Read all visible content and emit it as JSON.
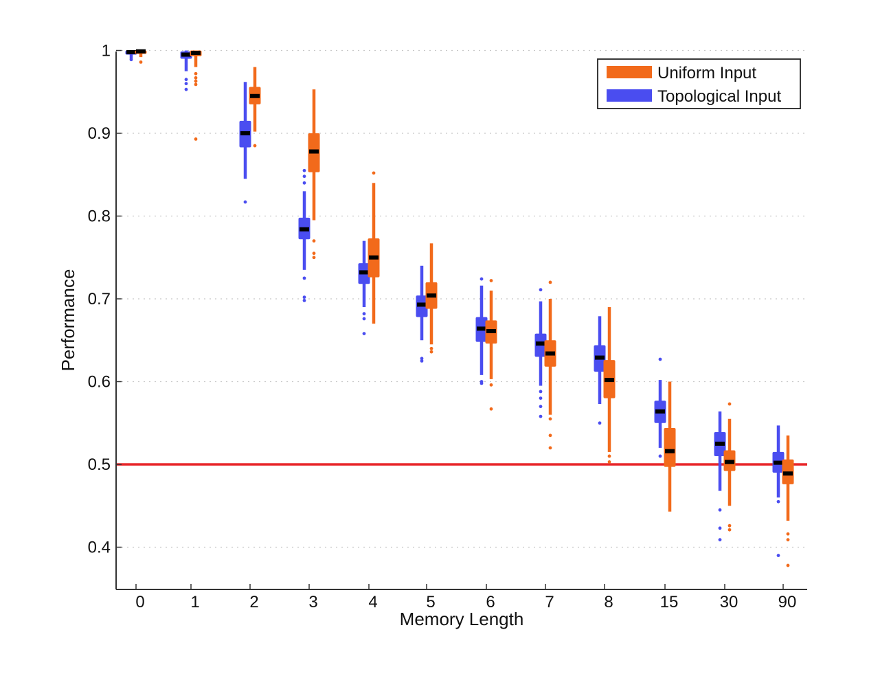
{
  "chart_data": {
    "type": "box",
    "xlabel": "Memory Length",
    "ylabel": "Performance",
    "categories": [
      "0",
      "1",
      "2",
      "3",
      "4",
      "5",
      "6",
      "7",
      "8",
      "15",
      "30",
      "90"
    ],
    "ylim": [
      0.35,
      1.0
    ],
    "yticks": [
      0.4,
      0.5,
      0.6,
      0.7,
      0.8,
      0.9,
      1
    ],
    "ytick_labels": [
      "0.4",
      "0.5",
      "0.6",
      "0.7",
      "0.8",
      "0.9",
      "1"
    ],
    "grid": "horizontal dotted",
    "legend_position": "top-right",
    "reference_line": {
      "y": 0.5,
      "color": "#e8262a"
    },
    "series": [
      {
        "name": "Topological Input",
        "color": "#4a4df0",
        "boxes": [
          {
            "median": 0.998,
            "q1": 0.995,
            "q3": 1.0,
            "whisker_low": 0.99,
            "whisker_high": 1.0,
            "outliers": [
              0.989
            ]
          },
          {
            "median": 0.995,
            "q1": 0.99,
            "q3": 0.999,
            "whisker_low": 0.975,
            "whisker_high": 1.0,
            "outliers": [
              0.965,
              0.96,
              0.953
            ]
          },
          {
            "median": 0.9,
            "q1": 0.883,
            "q3": 0.915,
            "whisker_low": 0.845,
            "whisker_high": 0.962,
            "outliers": [
              0.817
            ]
          },
          {
            "median": 0.784,
            "q1": 0.772,
            "q3": 0.798,
            "whisker_low": 0.735,
            "whisker_high": 0.83,
            "outliers": [
              0.855,
              0.848,
              0.84,
              0.725,
              0.702,
              0.698
            ]
          },
          {
            "median": 0.732,
            "q1": 0.718,
            "q3": 0.743,
            "whisker_low": 0.69,
            "whisker_high": 0.77,
            "outliers": [
              0.682,
              0.676,
              0.658
            ]
          },
          {
            "median": 0.693,
            "q1": 0.678,
            "q3": 0.704,
            "whisker_low": 0.65,
            "whisker_high": 0.74,
            "outliers": [
              0.628,
              0.625
            ]
          },
          {
            "median": 0.664,
            "q1": 0.648,
            "q3": 0.678,
            "whisker_low": 0.608,
            "whisker_high": 0.716,
            "outliers": [
              0.724,
              0.6,
              0.598
            ]
          },
          {
            "median": 0.646,
            "q1": 0.63,
            "q3": 0.658,
            "whisker_low": 0.595,
            "whisker_high": 0.697,
            "outliers": [
              0.711,
              0.588,
              0.58,
              0.57,
              0.558
            ]
          },
          {
            "median": 0.629,
            "q1": 0.612,
            "q3": 0.644,
            "whisker_low": 0.573,
            "whisker_high": 0.679,
            "outliers": [
              0.55
            ]
          },
          {
            "median": 0.564,
            "q1": 0.55,
            "q3": 0.577,
            "whisker_low": 0.52,
            "whisker_high": 0.602,
            "outliers": [
              0.627,
              0.51
            ]
          },
          {
            "median": 0.525,
            "q1": 0.51,
            "q3": 0.539,
            "whisker_low": 0.468,
            "whisker_high": 0.564,
            "outliers": [
              0.445,
              0.423,
              0.409
            ]
          },
          {
            "median": 0.502,
            "q1": 0.49,
            "q3": 0.515,
            "whisker_low": 0.46,
            "whisker_high": 0.547,
            "outliers": [
              0.455,
              0.39
            ]
          }
        ]
      },
      {
        "name": "Uniform Input",
        "color": "#f26a1b",
        "boxes": [
          {
            "median": 0.999,
            "q1": 0.996,
            "q3": 1.0,
            "whisker_low": 0.992,
            "whisker_high": 1.0,
            "outliers": [
              0.986
            ]
          },
          {
            "median": 0.997,
            "q1": 0.993,
            "q3": 1.0,
            "whisker_low": 0.98,
            "whisker_high": 1.0,
            "outliers": [
              0.972,
              0.967,
              0.963,
              0.959,
              0.893
            ]
          },
          {
            "median": 0.945,
            "q1": 0.935,
            "q3": 0.956,
            "whisker_low": 0.902,
            "whisker_high": 0.98,
            "outliers": [
              0.885
            ]
          },
          {
            "median": 0.878,
            "q1": 0.853,
            "q3": 0.9,
            "whisker_low": 0.795,
            "whisker_high": 0.953,
            "outliers": [
              0.77,
              0.755,
              0.75
            ]
          },
          {
            "median": 0.75,
            "q1": 0.726,
            "q3": 0.773,
            "whisker_low": 0.67,
            "whisker_high": 0.84,
            "outliers": [
              0.852
            ]
          },
          {
            "median": 0.704,
            "q1": 0.688,
            "q3": 0.72,
            "whisker_low": 0.645,
            "whisker_high": 0.767,
            "outliers": [
              0.64,
              0.636
            ]
          },
          {
            "median": 0.661,
            "q1": 0.646,
            "q3": 0.674,
            "whisker_low": 0.603,
            "whisker_high": 0.71,
            "outliers": [
              0.722,
              0.596,
              0.567
            ]
          },
          {
            "median": 0.634,
            "q1": 0.618,
            "q3": 0.65,
            "whisker_low": 0.56,
            "whisker_high": 0.7,
            "outliers": [
              0.72,
              0.555,
              0.535,
              0.52
            ]
          },
          {
            "median": 0.602,
            "q1": 0.58,
            "q3": 0.626,
            "whisker_low": 0.515,
            "whisker_high": 0.69,
            "outliers": [
              0.51,
              0.503
            ]
          },
          {
            "median": 0.516,
            "q1": 0.497,
            "q3": 0.544,
            "whisker_low": 0.443,
            "whisker_high": 0.6,
            "outliers": []
          },
          {
            "median": 0.503,
            "q1": 0.492,
            "q3": 0.517,
            "whisker_low": 0.45,
            "whisker_high": 0.555,
            "outliers": [
              0.573,
              0.426,
              0.421
            ]
          },
          {
            "median": 0.489,
            "q1": 0.476,
            "q3": 0.506,
            "whisker_low": 0.432,
            "whisker_high": 0.535,
            "outliers": [
              0.416,
              0.409,
              0.378
            ]
          }
        ]
      }
    ],
    "legend": [
      {
        "label": "Uniform Input",
        "color": "#f26a1b"
      },
      {
        "label": "Topological Input",
        "color": "#4a4df0"
      }
    ]
  }
}
